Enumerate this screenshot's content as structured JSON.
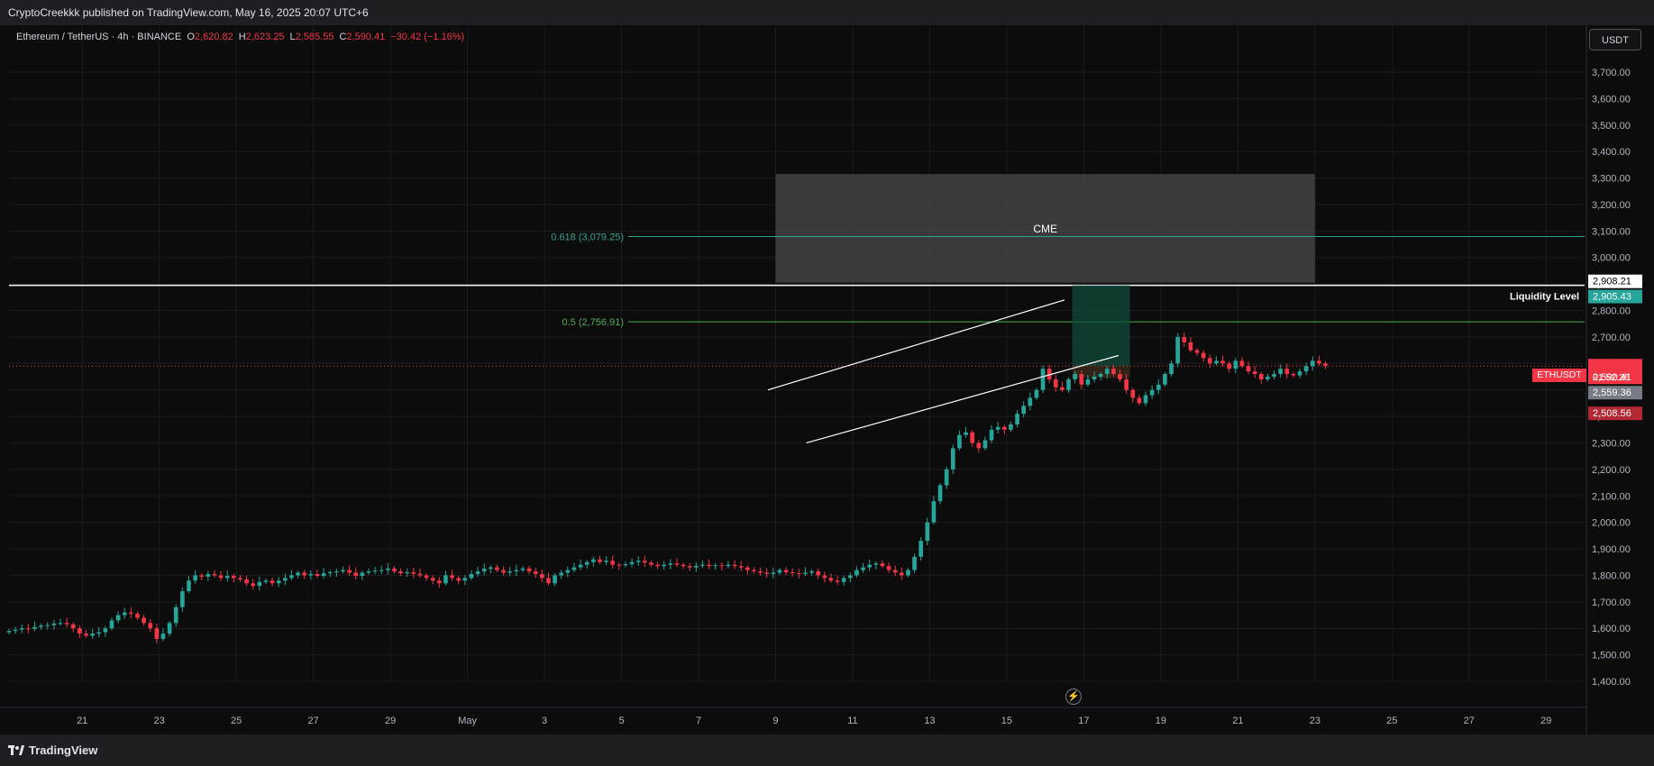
{
  "header": {
    "published": "CryptoCreekkk published on TradingView.com, May 16, 2025 20:07 UTC+6"
  },
  "legend": {
    "symbol": "Ethereum / TetherUS · 4h · BINANCE",
    "open_label": "O",
    "open": "2,620.82",
    "high_label": "H",
    "high": "2,623.25",
    "low_label": "L",
    "low": "2,585.55",
    "close_label": "C",
    "close": "2,590.41",
    "change": "−30.42 (−1.16%)"
  },
  "currency_button": "USDT",
  "footer": {
    "brand": "TradingView"
  },
  "colors": {
    "up": "#26a69a",
    "down": "#f23645",
    "background": "#0c0c0c",
    "grid": "#1c1c1f",
    "fib618": "#2fa38f",
    "fib05": "#4caf50",
    "white": "#ffffff",
    "cme_box": "#4a4a4a",
    "target_box": "#0f4a3c"
  },
  "chart_data": {
    "type": "candlestick",
    "symbol": "ETHUSDT",
    "interval": "4h",
    "ylim": [
      1350,
      3800
    ],
    "y_ticks": [
      1400,
      1500,
      1600,
      1700,
      1800,
      1900,
      2000,
      2100,
      2200,
      2300,
      2400,
      2500,
      2600,
      2700,
      2800,
      2900,
      3000,
      3100,
      3200,
      3300,
      3400,
      3500,
      3600,
      3700
    ],
    "y_tick_labels": [
      "1,400.00",
      "1,500.00",
      "1,600.00",
      "1,700.00",
      "1,800.00",
      "1,900.00",
      "2,000.00",
      "2,100.00",
      "2,200.00",
      "2,300.00",
      "2,400.00",
      "2,500.00",
      "2,600.00",
      "2,700.00",
      "2,800.00",
      "2,900.00",
      "3,000.00",
      "3,100.00",
      "3,200.00",
      "3,300.00",
      "3,400.00",
      "3,500.00",
      "3,600.00",
      "3,700.00"
    ],
    "x_ticks": [
      {
        "label": "21",
        "day": 21
      },
      {
        "label": "23",
        "day": 23
      },
      {
        "label": "25",
        "day": 25
      },
      {
        "label": "27",
        "day": 27
      },
      {
        "label": "29",
        "day": 29
      },
      {
        "label": "May",
        "day": 31
      },
      {
        "label": "3",
        "day": 33
      },
      {
        "label": "5",
        "day": 35
      },
      {
        "label": "7",
        "day": 37
      },
      {
        "label": "9",
        "day": 39
      },
      {
        "label": "11",
        "day": 41
      },
      {
        "label": "13",
        "day": 43
      },
      {
        "label": "15",
        "day": 45
      },
      {
        "label": "17",
        "day": 47
      },
      {
        "label": "19",
        "day": 49
      },
      {
        "label": "21",
        "day": 51
      },
      {
        "label": "23",
        "day": 53
      },
      {
        "label": "25",
        "day": 55
      },
      {
        "label": "27",
        "day": 57
      },
      {
        "label": "29",
        "day": 59
      }
    ],
    "x_range_days": [
      19.1,
      60.0
    ],
    "candle_start_day": 19.1,
    "candle_step_days": 0.1667,
    "closes": [
      1590,
      1595,
      1600,
      1598,
      1605,
      1610,
      1612,
      1618,
      1620,
      1615,
      1600,
      1580,
      1572,
      1580,
      1585,
      1600,
      1630,
      1650,
      1660,
      1655,
      1640,
      1620,
      1600,
      1560,
      1580,
      1620,
      1680,
      1740,
      1780,
      1800,
      1795,
      1805,
      1800,
      1790,
      1798,
      1790,
      1785,
      1770,
      1760,
      1775,
      1780,
      1770,
      1780,
      1790,
      1800,
      1810,
      1800,
      1805,
      1798,
      1808,
      1812,
      1815,
      1820,
      1810,
      1798,
      1810,
      1815,
      1818,
      1820,
      1826,
      1815,
      1808,
      1812,
      1806,
      1800,
      1790,
      1780,
      1770,
      1800,
      1790,
      1780,
      1790,
      1805,
      1815,
      1825,
      1830,
      1820,
      1810,
      1815,
      1820,
      1826,
      1815,
      1805,
      1790,
      1770,
      1800,
      1810,
      1820,
      1830,
      1840,
      1850,
      1860,
      1850,
      1855,
      1840,
      1838,
      1842,
      1850,
      1855,
      1848,
      1840,
      1835,
      1840,
      1845,
      1840,
      1835,
      1830,
      1836,
      1840,
      1835,
      1838,
      1835,
      1840,
      1835,
      1830,
      1820,
      1815,
      1810,
      1805,
      1810,
      1820,
      1812,
      1808,
      1805,
      1810,
      1815,
      1800,
      1790,
      1780,
      1775,
      1790,
      1800,
      1820,
      1830,
      1840,
      1845,
      1835,
      1820,
      1810,
      1800,
      1820,
      1870,
      1930,
      2000,
      2080,
      2140,
      2200,
      2280,
      2330,
      2340,
      2300,
      2280,
      2310,
      2350,
      2360,
      2350,
      2370,
      2410,
      2440,
      2470,
      2500,
      2580,
      2540,
      2510,
      2500,
      2540,
      2560,
      2520,
      2540,
      2550,
      2560,
      2580,
      2560,
      2540,
      2500,
      2470,
      2450,
      2480,
      2500,
      2520,
      2560,
      2600,
      2700,
      2680,
      2650,
      2640,
      2620,
      2600,
      2610,
      2600,
      2580,
      2610,
      2590,
      2570,
      2560,
      2540,
      2550,
      2560,
      2580,
      2560,
      2555,
      2570,
      2590,
      2610,
      2600,
      2590
    ],
    "price_labels": {
      "current": "2,590.41",
      "countdown": "01:52:26",
      "level_a": "2,559.36",
      "level_b": "2,508.56",
      "level_c": "2,908.21",
      "level_d": "2,905.43",
      "symbol_tag": "ETHUSDT"
    },
    "annotations": {
      "fib_618": {
        "label": "0.618 (3,079.25)",
        "price": 3079.25
      },
      "fib_05": {
        "label": "0.5 (2,756.91)",
        "price": 2756.91
      },
      "liquidity": {
        "label": "Liquidity Level",
        "price": 2895
      },
      "cme_zone": {
        "label": "CME",
        "price_top": 3315,
        "price_bottom": 2905,
        "day_from": 39.0,
        "day_to": 53.0
      },
      "target_zone": {
        "price_top": 2895,
        "price_bottom": 2590,
        "day_from": 46.7,
        "day_to": 48.2
      },
      "stop_zone": {
        "price_top": 2590,
        "price_bottom": 2545,
        "day_from": 46.7,
        "day_to": 48.2
      },
      "channel_upper": {
        "from": {
          "day": 38.8,
          "price": 2500
        },
        "to": {
          "day": 46.5,
          "price": 2840
        }
      },
      "channel_lower": {
        "from": {
          "day": 39.8,
          "price": 2300
        },
        "to": {
          "day": 47.9,
          "price": 2630
        }
      }
    }
  }
}
